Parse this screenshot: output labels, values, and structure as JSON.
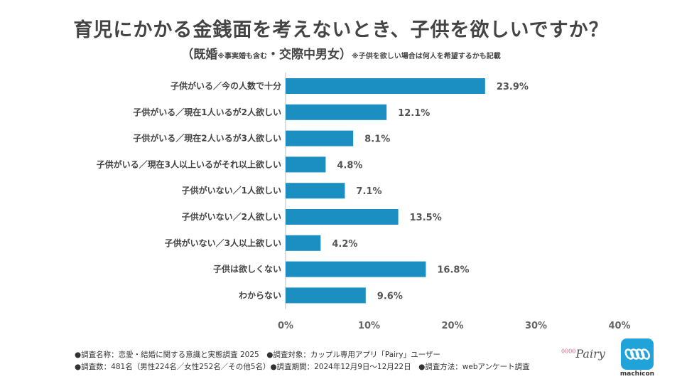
{
  "header": {
    "title": "育児にかかる金銭面を考えないとき、子供を欲しいですか？",
    "subtitle_open": "（既婚",
    "subtitle_note1": "※事実婚も含む",
    "subtitle_mid": "・交際中男女）",
    "subtitle_note2": "※子供を欲しい場合は何人を希望するかも記載"
  },
  "chart_data": {
    "type": "bar",
    "orientation": "horizontal",
    "title": "育児にかかる金銭面を考えないとき、子供を欲しいですか？",
    "categories": [
      "子供がいる／今の人数で十分",
      "子供がいる／現在1人いるが2人欲しい",
      "子供がいる／現在2人いるが3人欲しい",
      "子供がいる／現在3人以上いるがそれ以上欲しい",
      "子供がいない／1人欲しい",
      "子供がいない／2人欲しい",
      "子供がいない／3人以上欲しい",
      "子供は欲しくない",
      "わからない"
    ],
    "values": [
      23.9,
      12.1,
      8.1,
      4.8,
      7.1,
      13.5,
      4.2,
      16.8,
      9.6
    ],
    "value_labels": [
      "23.9%",
      "12.1%",
      "8.1%",
      "4.8%",
      "7.1%",
      "13.5%",
      "4.2%",
      "16.8%",
      "9.6%"
    ],
    "xlim": [
      0,
      40
    ],
    "xticks": [
      0,
      10,
      20,
      30,
      40
    ],
    "xtick_labels": [
      "0%",
      "10%",
      "20%",
      "30%",
      "40%"
    ],
    "bar_color": "#1b8fc2",
    "grid": false
  },
  "footer": {
    "line1": "●調査名称：恋愛・結婚に関する意識と実態調査 2025　●調査対象：カップル専用アプリ「Pairy」ユーザー",
    "line2": "●調査数：481名（男性224名／女性252名／その他5名）●調査期間：2024年12月9日～12月22日　●調査方法：webアンケート調査"
  },
  "logos": {
    "pairy_dots": "0000",
    "pairy": "Pairy",
    "machicon": "machicon"
  }
}
